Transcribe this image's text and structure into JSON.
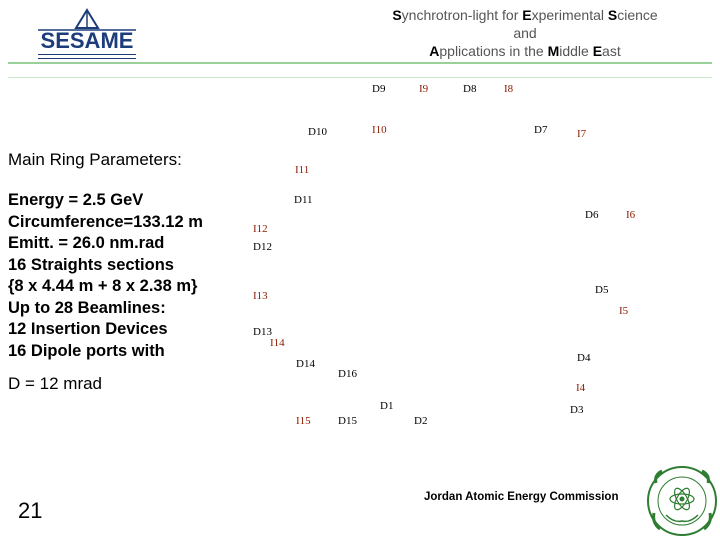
{
  "header": {
    "logo_text": "SESAME",
    "title_lines": [
      [
        [
          "S",
          "ynchrotron-light for "
        ],
        [
          "E",
          "xperimental "
        ],
        [
          "S",
          "cience"
        ]
      ],
      [
        [
          "",
          "and"
        ]
      ],
      [
        [
          "A",
          "pplications in the "
        ],
        [
          "M",
          "iddle "
        ],
        [
          "E",
          "ast"
        ]
      ]
    ]
  },
  "params": {
    "title": "Main Ring Parameters:",
    "lines": [
      "Energy = 2.5 GeV",
      "Circumference=133.12 m",
      "Emitt. = 26.0 nm.rad",
      "16 Straights sections",
      "{8 x 4.44 m + 8 x 2.38 m}",
      "Up to 28 Beamlines:",
      "12 Insertion Devices",
      "16 Dipole ports with"
    ],
    "note": "D = 12 mrad"
  },
  "ring_labels": [
    {
      "text": "D9",
      "kind": "d"
    },
    {
      "text": "I9",
      "kind": "i"
    },
    {
      "text": "D8",
      "kind": "d"
    },
    {
      "text": "I8",
      "kind": "i"
    },
    {
      "text": "D10",
      "kind": "d"
    },
    {
      "text": "I10",
      "kind": "i"
    },
    {
      "text": "D7",
      "kind": "d"
    },
    {
      "text": "I7",
      "kind": "i"
    },
    {
      "text": "I11",
      "kind": "i"
    },
    {
      "text": "D11",
      "kind": "d"
    },
    {
      "text": "D6",
      "kind": "d"
    },
    {
      "text": "I6",
      "kind": "i"
    },
    {
      "text": "I12",
      "kind": "i"
    },
    {
      "text": "D12",
      "kind": "d"
    },
    {
      "text": "D5",
      "kind": "d"
    },
    {
      "text": "I13",
      "kind": "i"
    },
    {
      "text": "I5",
      "kind": "i"
    },
    {
      "text": "D13",
      "kind": "d"
    },
    {
      "text": "I14",
      "kind": "i"
    },
    {
      "text": "D4",
      "kind": "d"
    },
    {
      "text": "D14",
      "kind": "d"
    },
    {
      "text": "D16",
      "kind": "d"
    },
    {
      "text": "I4",
      "kind": "i"
    },
    {
      "text": "D1",
      "kind": "d"
    },
    {
      "text": "D3",
      "kind": "d"
    },
    {
      "text": "I15",
      "kind": "i"
    },
    {
      "text": "D15",
      "kind": "d"
    },
    {
      "text": "D2",
      "kind": "d"
    }
  ],
  "footer": {
    "page_number": "21",
    "organization": "Jordan Atomic Energy Commission"
  },
  "colors": {
    "logo_blue": "#1c3d7a",
    "divider_green": "#9ad09a",
    "insertion_label": "#8b1a00",
    "seal_green": "#2e7d32"
  }
}
